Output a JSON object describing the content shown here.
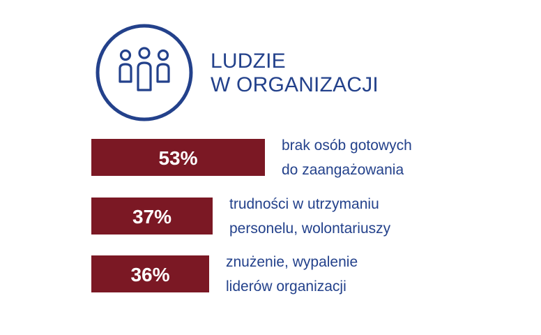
{
  "header": {
    "title_line1": "LUDZIE",
    "title_line2": "W ORGANIZACJI",
    "icon": "people-group-icon"
  },
  "colors": {
    "bar": "#7b1824",
    "text": "#23418b",
    "icon": "#23418b",
    "value_text": "#ffffff"
  },
  "chart_data": {
    "type": "bar",
    "orientation": "horizontal",
    "unit": "%",
    "categories": [
      "brak osób gotowych do zaangażowania",
      "trudności w utrzymaniu personelu, wolontariuszy",
      "znużenie, wypalenie liderów organizacji"
    ],
    "values": [
      53,
      37,
      36
    ],
    "value_labels": [
      "53%",
      "37%",
      "36%"
    ],
    "label_lines": [
      [
        "brak osób gotowych",
        "do zaangażowania"
      ],
      [
        "trudności w utrzymaniu",
        "personelu, wolontariuszy"
      ],
      [
        "znużenie, wypalenie",
        "liderów organizacji"
      ]
    ],
    "title": "",
    "grid": false,
    "legend": "none"
  }
}
